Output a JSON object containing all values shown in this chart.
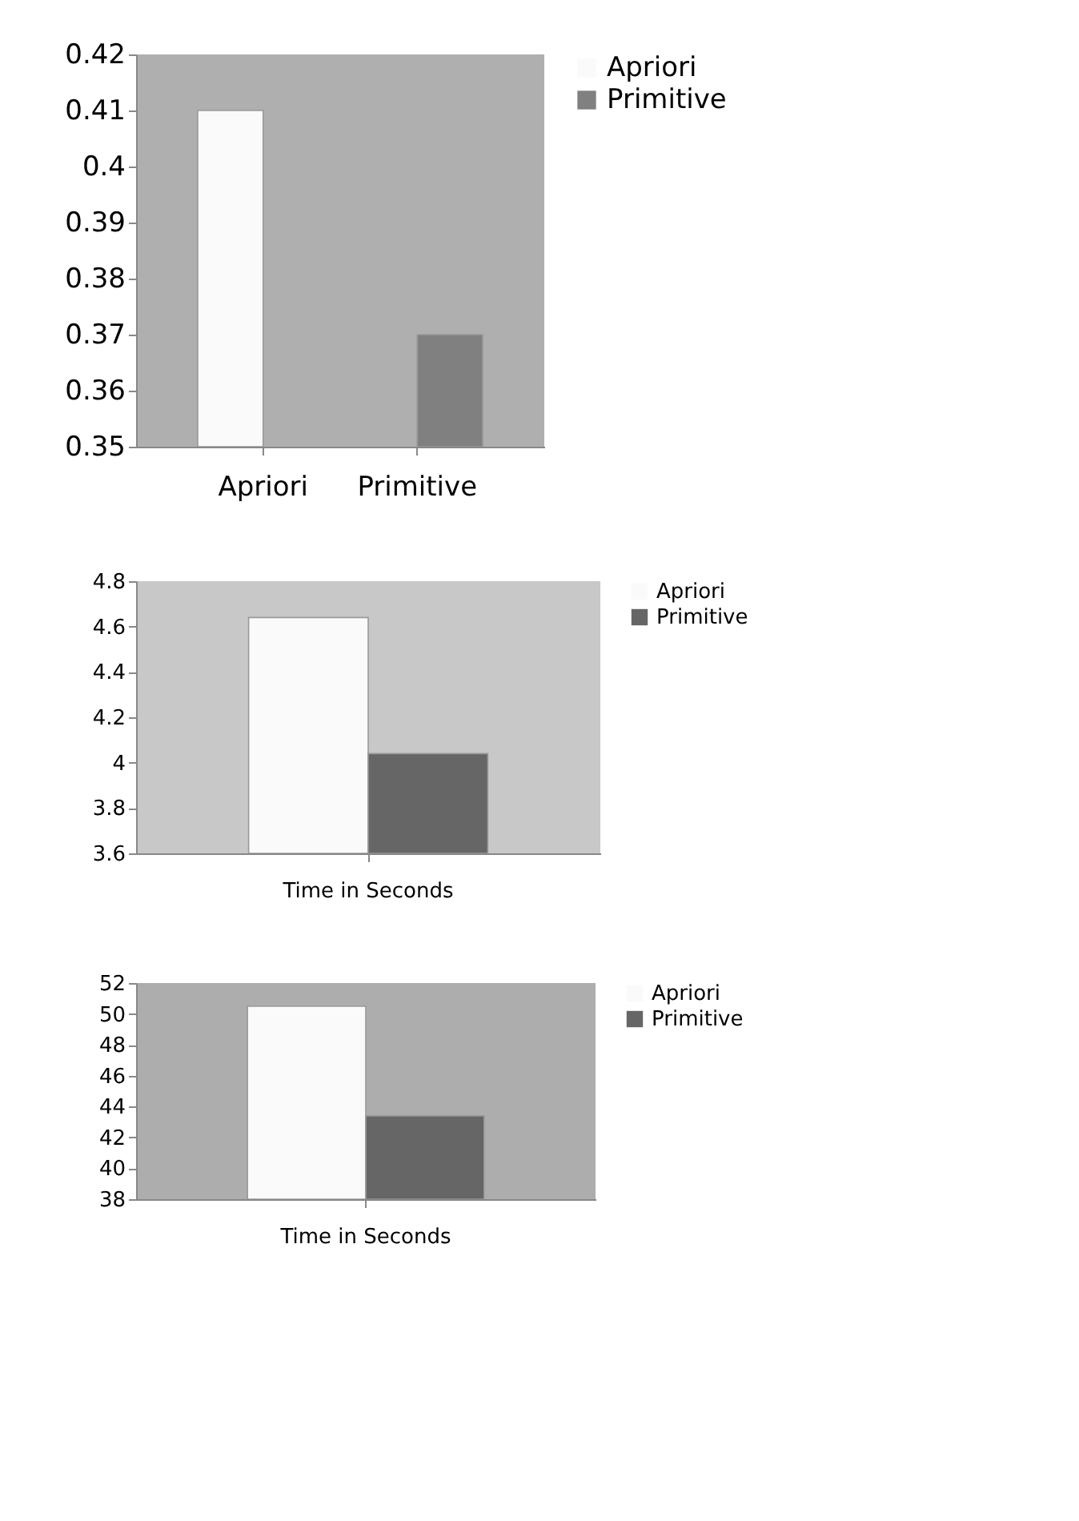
{
  "chart_data": [
    {
      "type": "bar",
      "categories": [
        "Apriori",
        "Primitive"
      ],
      "series": [
        {
          "name": "Apriori",
          "color": "#fafafa",
          "values": [
            0.41,
            null
          ]
        },
        {
          "name": "Primitive",
          "color": "#808080",
          "values": [
            null,
            0.37
          ]
        }
      ],
      "ylim": [
        0.35,
        0.42
      ],
      "yticks": [
        0.35,
        0.36,
        0.37,
        0.38,
        0.39,
        0.4,
        0.41,
        0.42
      ],
      "grid": false,
      "legend": "right"
    },
    {
      "type": "bar",
      "categories": [
        "Time in Seconds"
      ],
      "series": [
        {
          "name": "Apriori",
          "color": "#fafafa",
          "values": [
            4.64
          ]
        },
        {
          "name": "Primitive",
          "color": "#666666",
          "values": [
            4.04
          ]
        }
      ],
      "ylim": [
        3.6,
        4.8
      ],
      "yticks": [
        3.6,
        3.8,
        4,
        4.2,
        4.4,
        4.6,
        4.8
      ],
      "grid": false,
      "legend": "right"
    },
    {
      "type": "bar",
      "categories": [
        "Time in Seconds"
      ],
      "series": [
        {
          "name": "Apriori",
          "color": "#fafafa",
          "values": [
            50.5
          ]
        },
        {
          "name": "Primitive",
          "color": "#666666",
          "values": [
            43.4
          ]
        }
      ],
      "ylim": [
        38,
        52
      ],
      "yticks": [
        38,
        40,
        42,
        44,
        46,
        48,
        50,
        52
      ],
      "grid": false,
      "legend": "right"
    }
  ]
}
